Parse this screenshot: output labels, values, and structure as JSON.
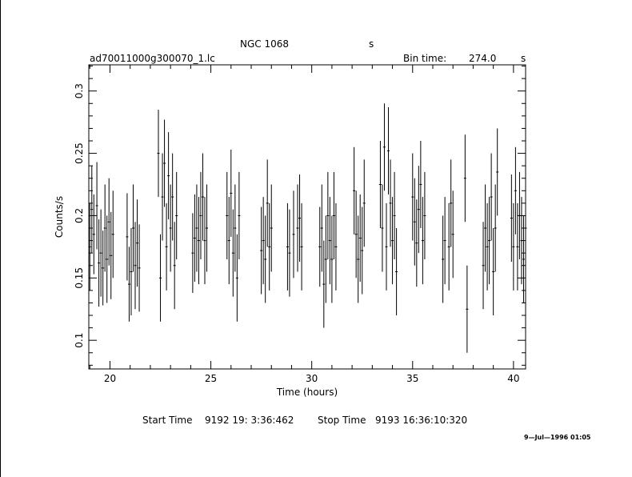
{
  "header": {
    "object": "NGC 1068",
    "object_suffix": "s",
    "filename": "ad70011000g300070_1.lc",
    "bin_label": "Bin time:",
    "bin_value": "274.0",
    "bin_unit": "s"
  },
  "footer": {
    "start_label": "Start Time",
    "start_value": "9192 19: 3:36:462",
    "stop_label": "Stop Time",
    "stop_value": "9193 16:36:10:320",
    "date_stamp": "9—Jul—1996 01:05"
  },
  "chart_data": {
    "type": "scatter",
    "xlabel": "Time (hours)",
    "ylabel": "Counts/s",
    "xlim": [
      18.95,
      40.6
    ],
    "ylim": [
      0.077,
      0.321
    ],
    "xticks": [
      20,
      25,
      30,
      35,
      40
    ],
    "xtick_labels": [
      "20",
      "25",
      "30",
      "35",
      "40"
    ],
    "yticks": [
      0.1,
      0.15,
      0.2,
      0.25,
      0.3
    ],
    "ytick_labels": [
      "0.1",
      "0.15",
      "0.2",
      "0.25",
      "0.3"
    ],
    "grid": false,
    "legend": "none",
    "series": [
      {
        "points": [
          [
            19.0,
            0.175,
            0.035
          ],
          [
            19.1,
            0.205,
            0.035
          ],
          [
            19.2,
            0.185,
            0.032
          ],
          [
            19.35,
            0.208,
            0.035
          ],
          [
            19.45,
            0.162,
            0.035
          ],
          [
            19.55,
            0.17,
            0.035
          ],
          [
            19.65,
            0.158,
            0.03
          ],
          [
            19.75,
            0.19,
            0.035
          ],
          [
            19.85,
            0.165,
            0.035
          ],
          [
            19.95,
            0.195,
            0.035
          ],
          [
            20.05,
            0.168,
            0.035
          ],
          [
            20.15,
            0.185,
            0.035
          ],
          [
            20.85,
            0.183,
            0.035
          ],
          [
            20.95,
            0.145,
            0.03
          ],
          [
            21.05,
            0.155,
            0.035
          ],
          [
            21.15,
            0.19,
            0.035
          ],
          [
            21.25,
            0.16,
            0.035
          ],
          [
            21.35,
            0.178,
            0.035
          ],
          [
            21.45,
            0.158,
            0.035
          ],
          [
            22.4,
            0.25,
            0.035
          ],
          [
            22.5,
            0.15,
            0.035
          ],
          [
            22.6,
            0.215,
            0.035
          ],
          [
            22.7,
            0.242,
            0.035
          ],
          [
            22.8,
            0.175,
            0.035
          ],
          [
            22.9,
            0.232,
            0.035
          ],
          [
            23.0,
            0.19,
            0.035
          ],
          [
            23.1,
            0.215,
            0.035
          ],
          [
            23.2,
            0.16,
            0.035
          ],
          [
            23.3,
            0.2,
            0.035
          ],
          [
            24.1,
            0.17,
            0.032
          ],
          [
            24.2,
            0.182,
            0.035
          ],
          [
            24.3,
            0.19,
            0.035
          ],
          [
            24.4,
            0.18,
            0.035
          ],
          [
            24.5,
            0.2,
            0.035
          ],
          [
            24.6,
            0.215,
            0.035
          ],
          [
            24.7,
            0.18,
            0.035
          ],
          [
            24.8,
            0.19,
            0.035
          ],
          [
            25.8,
            0.2,
            0.035
          ],
          [
            25.9,
            0.18,
            0.035
          ],
          [
            26.0,
            0.218,
            0.035
          ],
          [
            26.1,
            0.17,
            0.035
          ],
          [
            26.2,
            0.19,
            0.035
          ],
          [
            26.3,
            0.15,
            0.035
          ],
          [
            26.4,
            0.2,
            0.035
          ],
          [
            27.5,
            0.172,
            0.035
          ],
          [
            27.6,
            0.18,
            0.035
          ],
          [
            27.7,
            0.165,
            0.035
          ],
          [
            27.8,
            0.21,
            0.035
          ],
          [
            27.9,
            0.175,
            0.035
          ],
          [
            28.0,
            0.19,
            0.035
          ],
          [
            28.8,
            0.175,
            0.035
          ],
          [
            28.9,
            0.17,
            0.035
          ],
          [
            29.1,
            0.185,
            0.035
          ],
          [
            29.3,
            0.19,
            0.035
          ],
          [
            29.4,
            0.198,
            0.035
          ],
          [
            29.5,
            0.175,
            0.035
          ],
          [
            30.4,
            0.175,
            0.032
          ],
          [
            30.5,
            0.19,
            0.035
          ],
          [
            30.6,
            0.145,
            0.035
          ],
          [
            30.7,
            0.165,
            0.035
          ],
          [
            30.8,
            0.2,
            0.035
          ],
          [
            30.9,
            0.18,
            0.035
          ],
          [
            31.0,
            0.165,
            0.035
          ],
          [
            31.1,
            0.2,
            0.035
          ],
          [
            31.2,
            0.175,
            0.035
          ],
          [
            32.1,
            0.22,
            0.035
          ],
          [
            32.2,
            0.185,
            0.035
          ],
          [
            32.3,
            0.165,
            0.035
          ],
          [
            32.4,
            0.182,
            0.035
          ],
          [
            32.5,
            0.172,
            0.035
          ],
          [
            32.6,
            0.21,
            0.035
          ],
          [
            33.4,
            0.225,
            0.035
          ],
          [
            33.5,
            0.19,
            0.035
          ],
          [
            33.6,
            0.255,
            0.035
          ],
          [
            33.7,
            0.175,
            0.035
          ],
          [
            33.8,
            0.252,
            0.035
          ],
          [
            33.9,
            0.21,
            0.035
          ],
          [
            34.0,
            0.18,
            0.035
          ],
          [
            34.1,
            0.2,
            0.035
          ],
          [
            34.2,
            0.155,
            0.035
          ],
          [
            35.0,
            0.215,
            0.035
          ],
          [
            35.1,
            0.195,
            0.035
          ],
          [
            35.2,
            0.178,
            0.035
          ],
          [
            35.3,
            0.205,
            0.035
          ],
          [
            35.4,
            0.225,
            0.035
          ],
          [
            35.5,
            0.18,
            0.035
          ],
          [
            35.6,
            0.2,
            0.035
          ],
          [
            36.5,
            0.165,
            0.035
          ],
          [
            36.6,
            0.18,
            0.035
          ],
          [
            36.8,
            0.175,
            0.035
          ],
          [
            36.9,
            0.21,
            0.035
          ],
          [
            37.0,
            0.185,
            0.035
          ],
          [
            37.6,
            0.23,
            0.035
          ],
          [
            37.7,
            0.125,
            0.035
          ],
          [
            38.5,
            0.16,
            0.035
          ],
          [
            38.6,
            0.19,
            0.035
          ],
          [
            38.7,
            0.175,
            0.035
          ],
          [
            38.8,
            0.18,
            0.035
          ],
          [
            38.9,
            0.215,
            0.035
          ],
          [
            39.0,
            0.155,
            0.035
          ],
          [
            39.1,
            0.19,
            0.035
          ],
          [
            39.2,
            0.235,
            0.035
          ],
          [
            39.9,
            0.198,
            0.035
          ],
          [
            40.0,
            0.175,
            0.035
          ],
          [
            40.1,
            0.22,
            0.035
          ],
          [
            40.2,
            0.175,
            0.035
          ],
          [
            40.3,
            0.2,
            0.035
          ],
          [
            40.4,
            0.18,
            0.035
          ],
          [
            40.5,
            0.165,
            0.035
          ],
          [
            40.6,
            0.19,
            0.035
          ]
        ]
      }
    ]
  }
}
